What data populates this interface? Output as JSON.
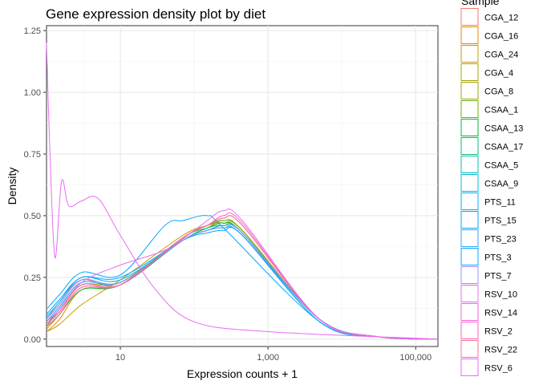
{
  "chart_data": {
    "type": "line",
    "title": "Gene expression density plot by diet",
    "xlabel": "Expression counts + 1",
    "ylabel": "Density",
    "x_scale": "log10",
    "xlim": [
      1,
      200000
    ],
    "ylim": [
      -0.03,
      1.27
    ],
    "grid": true,
    "legend_position": "right",
    "legend_title": "Sample",
    "x_ticks": [
      {
        "value": 10,
        "label": "10"
      },
      {
        "value": 1000,
        "label": "1,000"
      },
      {
        "value": 100000,
        "label": "100,000"
      }
    ],
    "y_ticks": [
      {
        "value": 0.0,
        "label": "0.00"
      },
      {
        "value": 0.25,
        "label": "0.25"
      },
      {
        "value": 0.5,
        "label": "0.50"
      },
      {
        "value": 0.75,
        "label": "0.75"
      },
      {
        "value": 1.0,
        "label": "1.00"
      },
      {
        "value": 1.25,
        "label": "1.25"
      }
    ],
    "series": [
      {
        "name": "CGA_12",
        "color": "#F8766D",
        "x": [
          1,
          1.5,
          3,
          10,
          70,
          150,
          250,
          450,
          5000,
          30000,
          200000
        ],
        "y": [
          0.08,
          0.15,
          0.24,
          0.22,
          0.4,
          0.44,
          0.46,
          0.43,
          0.08,
          0.01,
          0.0
        ]
      },
      {
        "name": "CGA_16",
        "color": "#E58700",
        "x": [
          1,
          1.5,
          3,
          10,
          70,
          150,
          250,
          450,
          5000,
          30000,
          200000
        ],
        "y": [
          0.03,
          0.08,
          0.2,
          0.22,
          0.4,
          0.45,
          0.48,
          0.44,
          0.08,
          0.01,
          0.0
        ]
      },
      {
        "name": "CGA_24",
        "color": "#C99800",
        "x": [
          1,
          1.5,
          3,
          10,
          70,
          150,
          250,
          450,
          5000,
          30000,
          200000
        ],
        "y": [
          0.03,
          0.06,
          0.14,
          0.24,
          0.42,
          0.46,
          0.48,
          0.44,
          0.08,
          0.01,
          0.0
        ]
      },
      {
        "name": "CGA_4",
        "color": "#A3A500",
        "x": [
          1,
          1.5,
          3,
          10,
          70,
          150,
          250,
          450,
          5000,
          30000,
          200000
        ],
        "y": [
          0.05,
          0.12,
          0.22,
          0.23,
          0.41,
          0.46,
          0.47,
          0.44,
          0.08,
          0.01,
          0.0
        ]
      },
      {
        "name": "CGA_8",
        "color": "#A3A500",
        "x": [
          1,
          1.5,
          3,
          10,
          70,
          150,
          250,
          450,
          5000,
          30000,
          200000
        ],
        "y": [
          0.04,
          0.1,
          0.21,
          0.22,
          0.41,
          0.46,
          0.47,
          0.43,
          0.08,
          0.01,
          0.0
        ]
      },
      {
        "name": "CSAA_1",
        "color": "#6BB100",
        "x": [
          1,
          1.5,
          3,
          10,
          70,
          150,
          250,
          450,
          5000,
          30000,
          200000
        ],
        "y": [
          0.06,
          0.11,
          0.22,
          0.22,
          0.41,
          0.46,
          0.48,
          0.44,
          0.08,
          0.01,
          0.0
        ]
      },
      {
        "name": "CSAA_13",
        "color": "#00BA38",
        "x": [
          1,
          1.5,
          3,
          10,
          70,
          150,
          250,
          450,
          5000,
          30000,
          200000
        ],
        "y": [
          0.05,
          0.1,
          0.2,
          0.22,
          0.41,
          0.45,
          0.47,
          0.43,
          0.08,
          0.01,
          0.0
        ]
      },
      {
        "name": "CSAA_17",
        "color": "#00BF7D",
        "x": [
          1,
          1.5,
          3,
          10,
          70,
          150,
          250,
          450,
          5000,
          30000,
          200000
        ],
        "y": [
          0.07,
          0.13,
          0.23,
          0.23,
          0.4,
          0.45,
          0.46,
          0.43,
          0.08,
          0.01,
          0.0
        ]
      },
      {
        "name": "CSAA_5",
        "color": "#00C0AF",
        "x": [
          1,
          1.5,
          3,
          10,
          70,
          150,
          250,
          450,
          5000,
          30000,
          200000
        ],
        "y": [
          0.06,
          0.12,
          0.22,
          0.22,
          0.4,
          0.44,
          0.46,
          0.43,
          0.08,
          0.01,
          0.0
        ]
      },
      {
        "name": "CSAA_9",
        "color": "#00BCD8",
        "x": [
          1,
          1.5,
          3,
          10,
          70,
          150,
          250,
          450,
          5000,
          30000,
          200000
        ],
        "y": [
          0.08,
          0.14,
          0.24,
          0.23,
          0.4,
          0.44,
          0.45,
          0.42,
          0.08,
          0.01,
          0.0
        ]
      },
      {
        "name": "PTS_11",
        "color": "#00B0F6",
        "x": [
          1,
          1.5,
          3,
          10,
          70,
          150,
          250,
          450,
          5000,
          30000,
          200000
        ],
        "y": [
          0.09,
          0.15,
          0.25,
          0.24,
          0.4,
          0.44,
          0.45,
          0.42,
          0.07,
          0.01,
          0.0
        ]
      },
      {
        "name": "PTS_15",
        "color": "#00A5FF",
        "x": [
          1,
          1.5,
          3,
          10,
          70,
          150,
          250,
          450,
          5000,
          30000,
          200000
        ],
        "y": [
          0.1,
          0.16,
          0.25,
          0.25,
          0.4,
          0.43,
          0.44,
          0.42,
          0.07,
          0.01,
          0.0
        ]
      },
      {
        "name": "PTS_23",
        "color": "#35A2FF",
        "x": [
          1,
          1.5,
          3,
          10,
          70,
          150,
          250,
          450,
          5000,
          30000,
          200000
        ],
        "y": [
          0.07,
          0.13,
          0.23,
          0.23,
          0.4,
          0.44,
          0.45,
          0.42,
          0.08,
          0.01,
          0.0
        ]
      },
      {
        "name": "PTS_3",
        "color": "#00A9FF",
        "x": [
          1,
          1.5,
          3,
          10,
          40,
          70,
          150,
          250,
          5000,
          30000,
          200000
        ],
        "y": [
          0.12,
          0.18,
          0.27,
          0.26,
          0.46,
          0.48,
          0.5,
          0.45,
          0.07,
          0.01,
          0.0
        ]
      },
      {
        "name": "PTS_7",
        "color": "#9590FF",
        "x": [
          1,
          1.5,
          3,
          10,
          70,
          150,
          250,
          450,
          5000,
          30000,
          200000
        ],
        "y": [
          0.08,
          0.14,
          0.24,
          0.23,
          0.4,
          0.44,
          0.45,
          0.43,
          0.08,
          0.01,
          0.0
        ]
      },
      {
        "name": "RSV_10",
        "color": "#E76BF3",
        "x": [
          1,
          1.1,
          1.3,
          1.6,
          2,
          3,
          5,
          10,
          30,
          100,
          1000,
          200000
        ],
        "y": [
          1.2,
          0.8,
          0.33,
          0.64,
          0.54,
          0.56,
          0.57,
          0.42,
          0.2,
          0.07,
          0.03,
          0.0
        ]
      },
      {
        "name": "RSV_14",
        "color": "#FA62DB",
        "x": [
          1,
          1.5,
          3,
          10,
          70,
          150,
          250,
          450,
          5000,
          30000,
          200000
        ],
        "y": [
          0.06,
          0.11,
          0.22,
          0.22,
          0.41,
          0.46,
          0.49,
          0.46,
          0.08,
          0.01,
          0.0
        ]
      },
      {
        "name": "RSV_2",
        "color": "#FF62BC",
        "x": [
          1,
          1.5,
          3,
          10,
          70,
          150,
          250,
          450,
          5000,
          30000,
          200000
        ],
        "y": [
          0.05,
          0.1,
          0.21,
          0.22,
          0.41,
          0.46,
          0.5,
          0.47,
          0.08,
          0.01,
          0.0
        ]
      },
      {
        "name": "RSV_22",
        "color": "#FF6C91",
        "x": [
          1,
          1.5,
          3,
          10,
          70,
          150,
          250,
          450,
          5000,
          30000,
          200000
        ],
        "y": [
          0.06,
          0.11,
          0.22,
          0.22,
          0.41,
          0.46,
          0.49,
          0.46,
          0.08,
          0.01,
          0.0
        ]
      },
      {
        "name": "RSV_6",
        "color": "#E76BF3",
        "x": [
          1,
          1.5,
          3,
          10,
          40,
          100,
          150,
          250,
          450,
          5000,
          30000,
          200000
        ],
        "y": [
          0.07,
          0.12,
          0.23,
          0.3,
          0.36,
          0.44,
          0.48,
          0.52,
          0.48,
          0.08,
          0.01,
          0.0
        ]
      }
    ]
  }
}
